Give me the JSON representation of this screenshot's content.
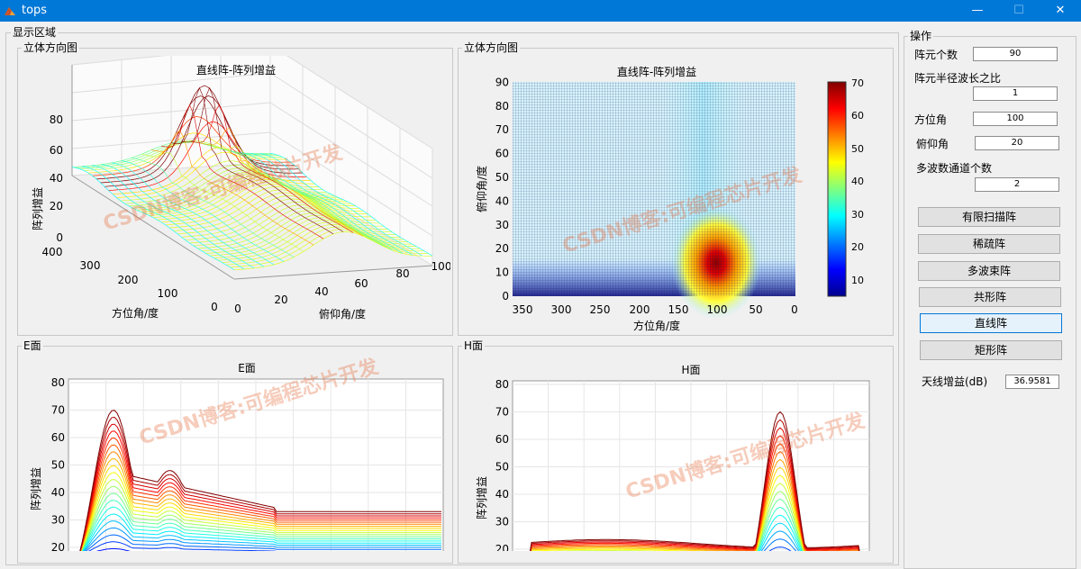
{
  "window": {
    "title": "tops",
    "minimize": "—",
    "maximize": "☐",
    "close": "✕"
  },
  "display_group": "显示区域",
  "watermark_text": "CSDN博客:可编程芯片开发",
  "panels": {
    "p1": {
      "label": "立体方向图",
      "title": "直线阵-阵列增益",
      "zlabel": "阵列增益",
      "xlabel": "方位角/度",
      "ylabel": "俯仰角/度",
      "zticks": [
        "0",
        "20",
        "40",
        "60",
        "80"
      ],
      "xticks": [
        "400",
        "300",
        "200",
        "100",
        "0"
      ],
      "yticks": [
        "0",
        "20",
        "40",
        "60",
        "80",
        "100"
      ]
    },
    "p2": {
      "label": "立体方向图",
      "title": "直线阵-阵列增益",
      "xlabel": "方位角/度",
      "ylabel": "俯仰角/度",
      "xticks": [
        "350",
        "300",
        "250",
        "200",
        "150",
        "100",
        "50",
        "0"
      ],
      "yticks": [
        "0",
        "10",
        "20",
        "30",
        "40",
        "50",
        "60",
        "70",
        "80",
        "90"
      ],
      "cticks": [
        "10",
        "20",
        "30",
        "40",
        "50",
        "60",
        "70"
      ]
    },
    "p3": {
      "label": "E面",
      "title": "E面",
      "ylabel": "阵列增益",
      "yticks": [
        "20",
        "30",
        "40",
        "50",
        "60",
        "70",
        "80"
      ]
    },
    "p4": {
      "label": "H面",
      "title": "H面",
      "ylabel": "阵列增益",
      "yticks": [
        "20",
        "30",
        "40",
        "50",
        "60",
        "70",
        "80"
      ]
    }
  },
  "ops": {
    "group_label": "操作",
    "fields": [
      {
        "label": "阵元个数",
        "value": "90"
      },
      {
        "label": "阵元半径波长之比",
        "value": "1"
      },
      {
        "label": "方位角",
        "value": "100"
      },
      {
        "label": "俯仰角",
        "value": "20"
      },
      {
        "label": "多波数通道个数",
        "value": "2"
      }
    ],
    "buttons": [
      "有限扫描阵",
      "稀疏阵",
      "多波束阵",
      "共形阵",
      "直线阵",
      "矩形阵"
    ],
    "gain_label": "天线增益(dB)",
    "gain_value": "36.9581"
  },
  "colors": {
    "titlebar": "#0078d7",
    "accent": "#0078d7"
  }
}
